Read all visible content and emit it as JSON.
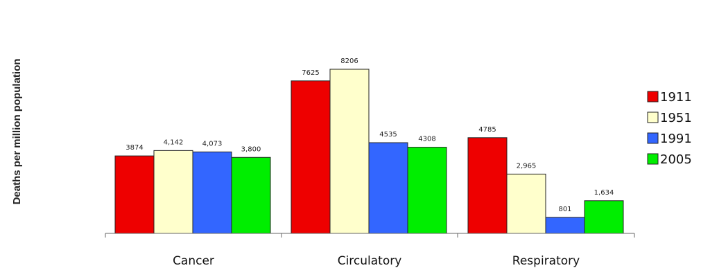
{
  "chart_data": {
    "type": "bar",
    "title": "",
    "xlabel": "",
    "ylabel": "Deaths per million population",
    "categories": [
      "Cancer",
      "Circulatory",
      "Respiratory"
    ],
    "series": [
      {
        "name": "1911",
        "color": "#ee0000",
        "values": [
          3874,
          7625,
          4785
        ],
        "labels": [
          "3874",
          "7625",
          "4785"
        ]
      },
      {
        "name": "1951",
        "color": "#ffffcc",
        "values": [
          4142,
          8206,
          2965
        ],
        "labels": [
          "4,142",
          "8206",
          "2,965"
        ]
      },
      {
        "name": "1991",
        "color": "#3366ff",
        "values": [
          4073,
          4535,
          801
        ],
        "labels": [
          "4,073",
          "4535",
          "801"
        ]
      },
      {
        "name": "2005",
        "color": "#00ee00",
        "values": [
          3800,
          4308,
          1634
        ],
        "labels": [
          "3,800",
          "4308",
          "1,634"
        ]
      }
    ],
    "ylim": [
      0,
      8206
    ],
    "grid": false,
    "legend": "right"
  }
}
